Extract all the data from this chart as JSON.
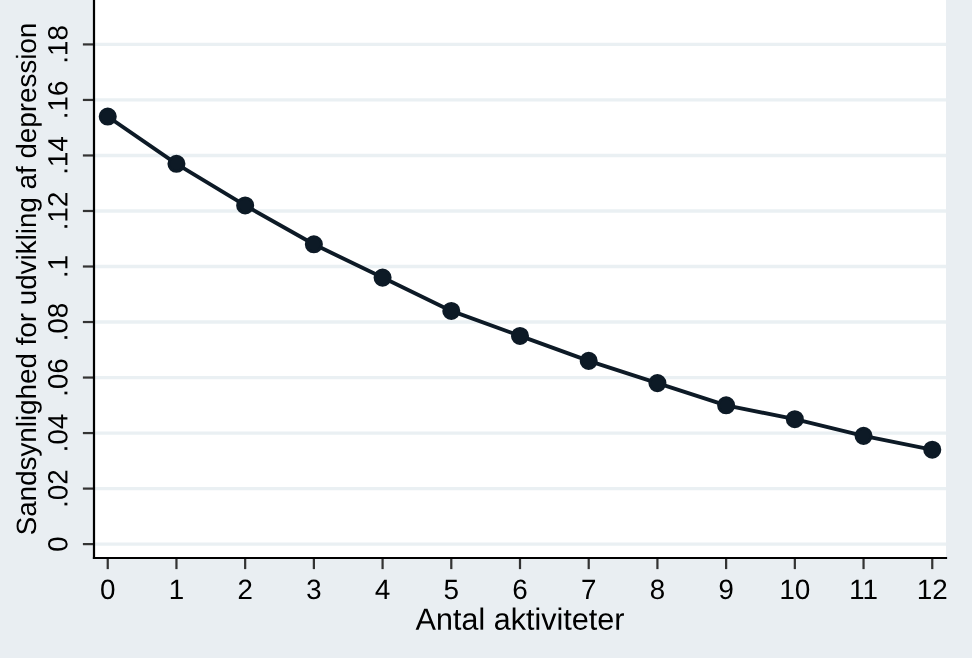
{
  "chart_data": {
    "type": "line",
    "xlabel": "Antal aktiviteter",
    "ylabel": "Sandsynlighed for udvikling af depression",
    "x": [
      0,
      1,
      2,
      3,
      4,
      5,
      6,
      7,
      8,
      9,
      10,
      11,
      12
    ],
    "series": [
      {
        "color": "#0d1a26",
        "values": [
          0.154,
          0.137,
          0.122,
          0.108,
          0.096,
          0.084,
          0.075,
          0.066,
          0.058,
          0.05,
          0.045,
          0.039,
          0.034
        ]
      }
    ],
    "marker": "circle",
    "line_style": "solid",
    "grid": "y",
    "xlim": [
      -0.2,
      12.2
    ],
    "ylim": [
      -0.005,
      0.196
    ],
    "xticks": [
      0,
      1,
      2,
      3,
      4,
      5,
      6,
      7,
      8,
      9,
      10,
      11,
      12
    ],
    "yticks": [
      0,
      {
        "value": 0.02,
        "label": ".02"
      },
      {
        "value": 0.04,
        "label": ".04"
      },
      {
        "value": 0.06,
        "label": ".06"
      },
      {
        "value": 0.08,
        "label": ".08"
      },
      {
        "value": 0.1,
        "label": ".1"
      },
      {
        "value": 0.12,
        "label": ".12"
      },
      {
        "value": 0.14,
        "label": ".14"
      },
      {
        "value": 0.16,
        "label": ".16"
      },
      {
        "value": 0.18,
        "label": ".18"
      }
    ]
  }
}
